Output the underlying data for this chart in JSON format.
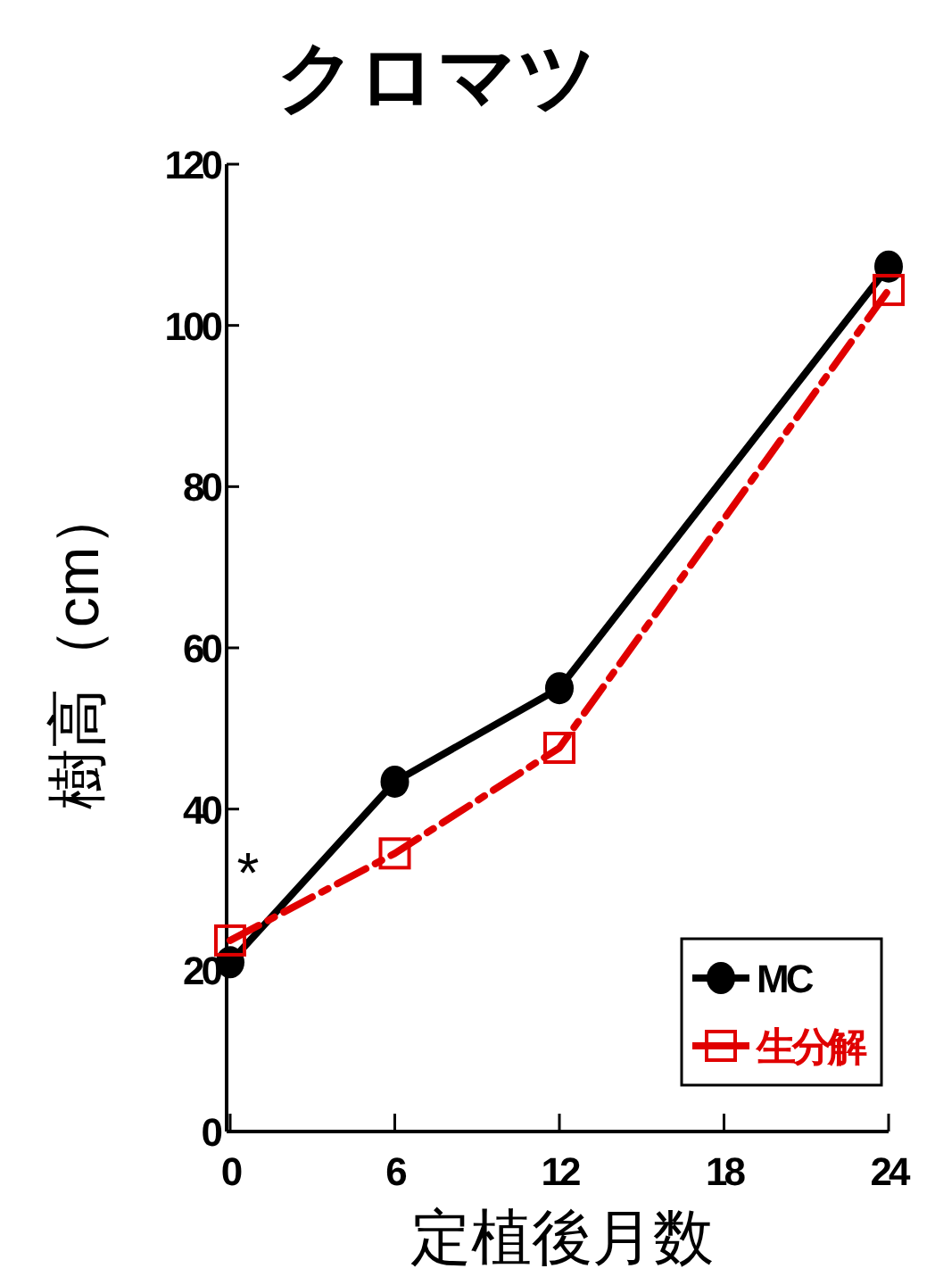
{
  "chart_data": {
    "type": "line",
    "title": "クロマツ",
    "xlabel": "定植後月数",
    "ylabel": "樹高（cm）",
    "x": [
      0,
      6,
      12,
      24
    ],
    "xlim": [
      0,
      24
    ],
    "xticks": [
      0,
      6,
      12,
      18,
      24
    ],
    "ylim": [
      0,
      120
    ],
    "yticks": [
      0,
      20,
      40,
      60,
      80,
      100,
      120
    ],
    "series": [
      {
        "name": "MC",
        "color": "#000000",
        "values": [
          21,
          43.4,
          55,
          107.3
        ],
        "marker": "circle",
        "line_style": "solid"
      },
      {
        "name": "生分解",
        "color": "#e00000",
        "values": [
          23.7,
          34.5,
          47.6,
          104.4
        ],
        "marker": "square",
        "line_style": "dashed"
      }
    ],
    "annotations": [
      "*"
    ],
    "legend": "bottom right",
    "grid": false
  }
}
